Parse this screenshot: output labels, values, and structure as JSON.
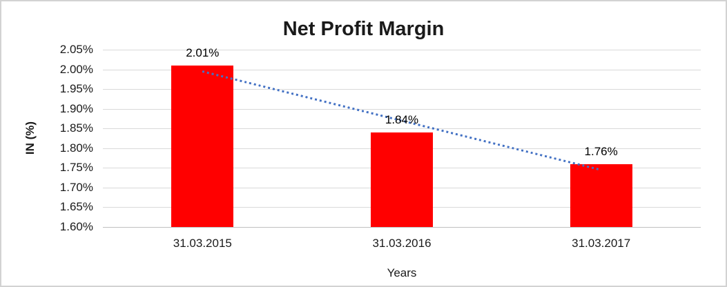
{
  "window": {
    "background_color": "#ffffff",
    "border_color": "#d2d2d2"
  },
  "chart_data": {
    "type": "bar",
    "title": "Net Profit Margin",
    "categories": [
      "31.03.2015",
      "31.03.2016",
      "31.03.2017"
    ],
    "values": [
      2.01,
      1.84,
      1.76
    ],
    "value_labels": [
      "2.01%",
      "1.84%",
      "1.76%"
    ],
    "xlabel": "Years",
    "ylabel": "IN (%)",
    "ylim": [
      1.6,
      2.05
    ],
    "ytick_step": 0.05,
    "ytick_labels": [
      "1.60%",
      "1.65%",
      "1.70%",
      "1.75%",
      "1.80%",
      "1.85%",
      "1.90%",
      "1.95%",
      "2.00%",
      "2.05%"
    ],
    "grid": true,
    "legend": "none",
    "bar_color": "#ff0000",
    "gridline_color": "#d9d9d9",
    "axis_line_color": "#bfbfbf",
    "text_color": "#1a1a1a",
    "trendline": {
      "style": "dotted",
      "color": "#4472c4",
      "start_value": 1.995,
      "end_value": 1.745,
      "start_category_index": 0,
      "end_category_index": 2
    }
  }
}
